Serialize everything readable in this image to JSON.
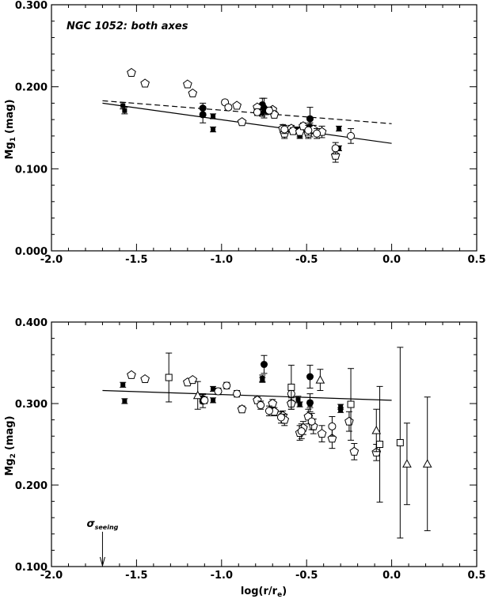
{
  "chart_data": [
    {
      "type": "scatter",
      "annotation": "NGC 1052: both axes",
      "ylabel": "Mg",
      "ylabel_sub": "1",
      "ylabel_unit": "(mag)",
      "xlim": [
        -2.0,
        0.5
      ],
      "ylim": [
        0.0,
        0.3
      ],
      "x_ticks": [
        "-2.0",
        "-1.5",
        "-1.0",
        "-0.5",
        "0.0",
        "0.5"
      ],
      "y_ticks": [
        "0.000",
        "0.100",
        "0.200",
        "0.300"
      ],
      "series": [
        {
          "marker": "filled-square",
          "points": [
            {
              "x": -1.58,
              "y": 0.177,
              "err": 0.004
            },
            {
              "x": -1.57,
              "y": 0.171,
              "err": 0.004
            },
            {
              "x": -1.05,
              "y": 0.164,
              "err": 0.003
            },
            {
              "x": -1.05,
              "y": 0.148,
              "err": 0.003
            },
            {
              "x": -0.76,
              "y": 0.168,
              "err": 0.004
            },
            {
              "x": -0.74,
              "y": 0.17,
              "err": 0.004
            },
            {
              "x": -0.55,
              "y": 0.148,
              "err": 0.003
            },
            {
              "x": -0.54,
              "y": 0.14,
              "err": 0.003
            },
            {
              "x": -0.48,
              "y": 0.152,
              "err": 0.004
            },
            {
              "x": -0.31,
              "y": 0.149,
              "err": 0.003
            },
            {
              "x": -0.31,
              "y": 0.125,
              "err": 0.003
            }
          ]
        },
        {
          "marker": "filled-circle",
          "points": [
            {
              "x": -1.11,
              "y": 0.174,
              "err": 0.006
            },
            {
              "x": -1.11,
              "y": 0.166,
              "err": 0.01
            },
            {
              "x": -0.76,
              "y": 0.178,
              "err": 0.008
            },
            {
              "x": -0.75,
              "y": 0.174,
              "err": 0.012
            },
            {
              "x": -0.48,
              "y": 0.161,
              "err": 0.014
            },
            {
              "x": -0.48,
              "y": 0.15,
              "err": 0.011
            }
          ]
        },
        {
          "marker": "open-pentagon",
          "points": [
            {
              "x": -1.53,
              "y": 0.217,
              "err": 0.002
            },
            {
              "x": -1.45,
              "y": 0.204,
              "err": 0.002
            },
            {
              "x": -1.2,
              "y": 0.203,
              "err": 0.002
            },
            {
              "x": -1.17,
              "y": 0.192,
              "err": 0.002
            },
            {
              "x": -0.91,
              "y": 0.177,
              "err": 0.002
            },
            {
              "x": -0.88,
              "y": 0.157,
              "err": 0.003
            },
            {
              "x": -0.79,
              "y": 0.175,
              "err": 0.003
            },
            {
              "x": -0.7,
              "y": 0.172,
              "err": 0.003
            },
            {
              "x": -0.69,
              "y": 0.166,
              "err": 0.004
            },
            {
              "x": -0.64,
              "y": 0.149,
              "err": 0.005
            },
            {
              "x": -0.63,
              "y": 0.143,
              "err": 0.006
            },
            {
              "x": -0.59,
              "y": 0.149,
              "err": 0.004
            },
            {
              "x": -0.58,
              "y": 0.146,
              "err": 0.004
            },
            {
              "x": -0.54,
              "y": 0.145,
              "err": 0.006
            },
            {
              "x": -0.52,
              "y": 0.152,
              "err": 0.004
            },
            {
              "x": -0.49,
              "y": 0.143,
              "err": 0.006
            },
            {
              "x": -0.46,
              "y": 0.148,
              "err": 0.005
            },
            {
              "x": -0.41,
              "y": 0.145,
              "err": 0.007
            },
            {
              "x": -0.33,
              "y": 0.116,
              "err": 0.008
            }
          ]
        },
        {
          "marker": "open-circle",
          "points": [
            {
              "x": -0.98,
              "y": 0.181,
              "err": 0.003
            },
            {
              "x": -0.96,
              "y": 0.175,
              "err": 0.003
            },
            {
              "x": -0.79,
              "y": 0.169,
              "err": 0.004
            },
            {
              "x": -0.72,
              "y": 0.171,
              "err": 0.004
            },
            {
              "x": -0.63,
              "y": 0.148,
              "err": 0.005
            },
            {
              "x": -0.49,
              "y": 0.147,
              "err": 0.006
            },
            {
              "x": -0.44,
              "y": 0.143,
              "err": 0.006
            },
            {
              "x": -0.33,
              "y": 0.125,
              "err": 0.007
            },
            {
              "x": -0.24,
              "y": 0.14,
              "err": 0.009
            }
          ]
        }
      ],
      "fits": [
        {
          "style": "dashed",
          "x": [
            -1.7,
            0.0
          ],
          "y": [
            0.183,
            0.155
          ]
        },
        {
          "style": "solid",
          "x": [
            -1.7,
            0.0
          ],
          "y": [
            0.18,
            0.131
          ]
        }
      ]
    },
    {
      "type": "scatter",
      "xlabel": "log(r/r",
      "xlabel_sub": "e",
      "xlabel_end": ")",
      "ylabel": "Mg",
      "ylabel_sub": "2",
      "ylabel_unit": "(mag)",
      "xlim": [
        -2.0,
        0.5
      ],
      "ylim": [
        0.1,
        0.4
      ],
      "x_ticks": [
        "-2.0",
        "-1.5",
        "-1.0",
        "-0.5",
        "0.0",
        "0.5"
      ],
      "y_ticks": [
        "0.100",
        "0.200",
        "0.300",
        "0.400"
      ],
      "seeing_label": "σ",
      "seeing_sub": "seeing",
      "seeing_x": -1.7,
      "series": [
        {
          "marker": "filled-square",
          "points": [
            {
              "x": -1.58,
              "y": 0.323,
              "err": 0.003
            },
            {
              "x": -1.57,
              "y": 0.303,
              "err": 0.003
            },
            {
              "x": -1.05,
              "y": 0.318,
              "err": 0.003
            },
            {
              "x": -1.05,
              "y": 0.304,
              "err": 0.003
            },
            {
              "x": -0.76,
              "y": 0.331,
              "err": 0.004
            },
            {
              "x": -0.76,
              "y": 0.329,
              "err": 0.003
            },
            {
              "x": -0.55,
              "y": 0.305,
              "err": 0.004
            },
            {
              "x": -0.54,
              "y": 0.299,
              "err": 0.003
            },
            {
              "x": -0.48,
              "y": 0.299,
              "err": 0.004
            },
            {
              "x": -0.3,
              "y": 0.296,
              "err": 0.003
            },
            {
              "x": -0.3,
              "y": 0.292,
              "err": 0.003
            }
          ]
        },
        {
          "marker": "filled-circle",
          "points": [
            {
              "x": -1.11,
              "y": 0.306,
              "err": 0.006
            },
            {
              "x": -1.11,
              "y": 0.303,
              "err": 0.008
            },
            {
              "x": -0.75,
              "y": 0.348,
              "err": 0.011
            },
            {
              "x": -0.48,
              "y": 0.333,
              "err": 0.014
            },
            {
              "x": -0.48,
              "y": 0.301,
              "err": 0.011
            }
          ]
        },
        {
          "marker": "open-pentagon",
          "points": [
            {
              "x": -1.53,
              "y": 0.335,
              "err": 0.002
            },
            {
              "x": -1.45,
              "y": 0.33,
              "err": 0.002
            },
            {
              "x": -1.2,
              "y": 0.326,
              "err": 0.002
            },
            {
              "x": -1.17,
              "y": 0.329,
              "err": 0.002
            },
            {
              "x": -0.88,
              "y": 0.293,
              "err": 0.004
            },
            {
              "x": -0.79,
              "y": 0.304,
              "err": 0.004
            },
            {
              "x": -0.7,
              "y": 0.3,
              "err": 0.005
            },
            {
              "x": -0.69,
              "y": 0.29,
              "err": 0.005
            },
            {
              "x": -0.64,
              "y": 0.285,
              "err": 0.006
            },
            {
              "x": -0.63,
              "y": 0.28,
              "err": 0.007
            },
            {
              "x": -0.59,
              "y": 0.3,
              "err": 0.007
            },
            {
              "x": -0.54,
              "y": 0.264,
              "err": 0.009
            },
            {
              "x": -0.52,
              "y": 0.27,
              "err": 0.008
            },
            {
              "x": -0.49,
              "y": 0.284,
              "err": 0.009
            },
            {
              "x": -0.46,
              "y": 0.272,
              "err": 0.009
            },
            {
              "x": -0.41,
              "y": 0.263,
              "err": 0.01
            },
            {
              "x": -0.35,
              "y": 0.257,
              "err": 0.012
            },
            {
              "x": -0.25,
              "y": 0.278,
              "err": 0.012
            },
            {
              "x": -0.22,
              "y": 0.241,
              "err": 0.01
            },
            {
              "x": -0.09,
              "y": 0.24,
              "err": 0.01
            }
          ]
        },
        {
          "marker": "open-circle",
          "points": [
            {
              "x": -1.1,
              "y": 0.304,
              "err": 0.004
            },
            {
              "x": -1.02,
              "y": 0.315,
              "err": 0.004
            },
            {
              "x": -0.97,
              "y": 0.322,
              "err": 0.004
            },
            {
              "x": -0.91,
              "y": 0.312,
              "err": 0.004
            },
            {
              "x": -0.77,
              "y": 0.298,
              "err": 0.005
            },
            {
              "x": -0.72,
              "y": 0.291,
              "err": 0.006
            },
            {
              "x": -0.65,
              "y": 0.283,
              "err": 0.007
            },
            {
              "x": -0.59,
              "y": 0.312,
              "err": 0.008
            },
            {
              "x": -0.53,
              "y": 0.266,
              "err": 0.009
            },
            {
              "x": -0.47,
              "y": 0.278,
              "err": 0.01
            },
            {
              "x": -0.35,
              "y": 0.272,
              "err": 0.012
            }
          ]
        },
        {
          "marker": "open-square",
          "points": [
            {
              "x": -1.31,
              "y": 0.332,
              "err": 0.03
            },
            {
              "x": -0.59,
              "y": 0.32,
              "err": 0.027
            },
            {
              "x": -0.24,
              "y": 0.299,
              "err": 0.044
            },
            {
              "x": -0.07,
              "y": 0.25,
              "err": 0.071
            },
            {
              "x": 0.05,
              "y": 0.252,
              "err": 0.117
            }
          ]
        },
        {
          "marker": "open-triangle",
          "points": [
            {
              "x": -1.14,
              "y": 0.31,
              "err": 0.017
            },
            {
              "x": -0.42,
              "y": 0.329,
              "err": 0.013
            },
            {
              "x": -0.09,
              "y": 0.267,
              "err": 0.026
            },
            {
              "x": 0.09,
              "y": 0.226,
              "err": 0.05
            },
            {
              "x": 0.21,
              "y": 0.226,
              "err": 0.082
            }
          ]
        }
      ],
      "fits": [
        {
          "style": "solid",
          "x": [
            -1.7,
            0.0
          ],
          "y": [
            0.316,
            0.304
          ]
        }
      ]
    }
  ]
}
